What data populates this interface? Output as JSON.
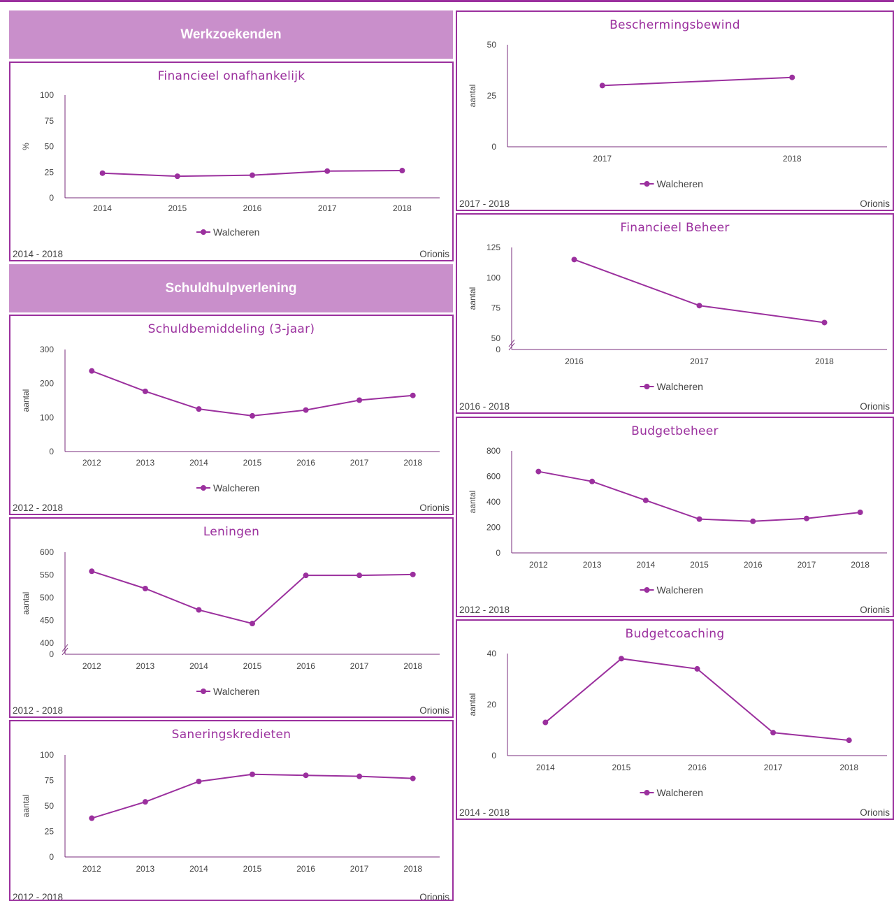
{
  "colors": {
    "accent": "#9b309e",
    "header_bg": "#c98fcb",
    "header_text": "#ffffff",
    "axis": "#7a2d7c"
  },
  "sections": [
    {
      "title": "Werkzoekenden"
    },
    {
      "title": "Schuldhulpverlening"
    }
  ],
  "chart_data": [
    {
      "id": "fin-onafhankelijk",
      "type": "line",
      "title": "Financieel onafhankelijk",
      "ylabel": "%",
      "ylim": [
        0,
        100
      ],
      "yticks": [
        0,
        25,
        50,
        75,
        100
      ],
      "break": false,
      "categories": [
        "2014",
        "2015",
        "2016",
        "2017",
        "2018"
      ],
      "series": [
        {
          "name": "Walcheren",
          "values": [
            24,
            21,
            22,
            26,
            26.5
          ]
        }
      ],
      "period": "2014 - 2018",
      "source": "Orionis"
    },
    {
      "id": "schuldbemiddeling",
      "type": "line",
      "title": "Schuldbemiddeling (3-jaar)",
      "ylabel": "aantal",
      "ylim": [
        0,
        300
      ],
      "yticks": [
        0,
        100,
        200,
        300
      ],
      "break": false,
      "categories": [
        "2012",
        "2013",
        "2014",
        "2015",
        "2016",
        "2017",
        "2018"
      ],
      "series": [
        {
          "name": "Walcheren",
          "values": [
            237,
            177,
            125,
            105,
            122,
            151,
            165
          ]
        }
      ],
      "period": "2012 - 2018",
      "source": "Orionis"
    },
    {
      "id": "leningen",
      "type": "line",
      "title": "Leningen",
      "ylabel": "aantal",
      "ylim": [
        400,
        600
      ],
      "yticks": [
        400,
        450,
        500,
        550,
        600
      ],
      "break": true,
      "categories": [
        "2012",
        "2013",
        "2014",
        "2015",
        "2016",
        "2017",
        "2018"
      ],
      "series": [
        {
          "name": "Walcheren",
          "values": [
            558,
            520,
            473,
            443,
            549,
            549,
            551
          ]
        }
      ],
      "period": "2012 - 2018",
      "source": "Orionis"
    },
    {
      "id": "saneringskredieten",
      "type": "line",
      "title": "Saneringskredieten",
      "ylabel": "aantal",
      "ylim": [
        0,
        100
      ],
      "yticks": [
        0,
        25,
        50,
        75,
        100
      ],
      "break": false,
      "categories": [
        "2012",
        "2013",
        "2014",
        "2015",
        "2016",
        "2017",
        "2018"
      ],
      "series": [
        {
          "name": "Walcheren",
          "values": [
            38,
            54,
            74,
            81,
            80,
            79,
            77
          ]
        }
      ],
      "period": "2012 - 2018",
      "source": "Orionis"
    },
    {
      "id": "beschermingsbewind",
      "type": "line",
      "title": "Beschermingsbewind",
      "ylabel": "aantal",
      "ylim": [
        0,
        50
      ],
      "yticks": [
        0,
        25,
        50
      ],
      "break": false,
      "categories": [
        "2017",
        "2018"
      ],
      "series": [
        {
          "name": "Walcheren",
          "values": [
            30,
            34
          ]
        }
      ],
      "period": "2017 - 2018",
      "source": "Orionis"
    },
    {
      "id": "financieel-beheer",
      "type": "line",
      "title": "Financieel Beheer",
      "ylabel": "aantal",
      "ylim": [
        50,
        125
      ],
      "yticks": [
        50,
        75,
        100,
        125
      ],
      "break": true,
      "categories": [
        "2016",
        "2017",
        "2018"
      ],
      "series": [
        {
          "name": "Walcheren",
          "values": [
            115,
            77,
            63
          ]
        }
      ],
      "period": "2016 - 2018",
      "source": "Orionis"
    },
    {
      "id": "budgetbeheer",
      "type": "line",
      "title": "Budgetbeheer",
      "ylabel": "aantal",
      "ylim": [
        0,
        800
      ],
      "yticks": [
        0,
        200,
        400,
        600,
        800
      ],
      "break": false,
      "categories": [
        "2012",
        "2013",
        "2014",
        "2015",
        "2016",
        "2017",
        "2018"
      ],
      "series": [
        {
          "name": "Walcheren",
          "values": [
            638,
            560,
            412,
            265,
            248,
            270,
            318
          ]
        }
      ],
      "period": "2012 - 2018",
      "source": "Orionis"
    },
    {
      "id": "budgetcoaching",
      "type": "line",
      "title": "Budgetcoaching",
      "ylabel": "aantal",
      "ylim": [
        0,
        40
      ],
      "yticks": [
        0,
        20,
        40
      ],
      "break": false,
      "categories": [
        "2014",
        "2015",
        "2016",
        "2017",
        "2018"
      ],
      "series": [
        {
          "name": "Walcheren",
          "values": [
            13,
            38,
            34,
            9,
            6
          ]
        }
      ],
      "period": "2014 - 2018",
      "source": "Orionis"
    }
  ]
}
